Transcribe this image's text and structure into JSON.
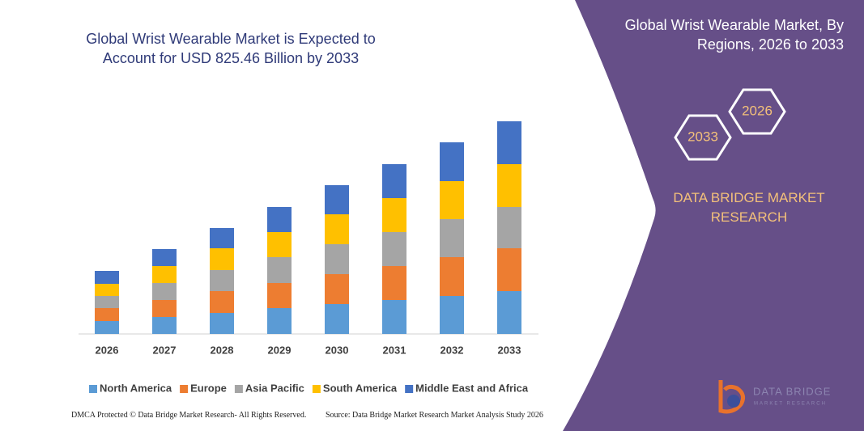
{
  "chart_data": {
    "type": "stacked_bar",
    "title": "Global Wrist Wearable Market is Expected to Account for USD 825.46 Billion by 2033",
    "categories": [
      "2026",
      "2027",
      "2028",
      "2029",
      "2030",
      "2031",
      "2032",
      "2033"
    ],
    "series": [
      {
        "name": "North America",
        "color": "#5b9bd5",
        "values": [
          16,
          21,
          26,
          32,
          37,
          42,
          47,
          53
        ]
      },
      {
        "name": "Europe",
        "color": "#ed7d31",
        "values": [
          16,
          21,
          27,
          31,
          37,
          42,
          48,
          53
        ]
      },
      {
        "name": "Asia Pacific",
        "color": "#a5a5a5",
        "values": [
          15,
          21,
          26,
          32,
          37,
          42,
          47,
          51
        ]
      },
      {
        "name": "South America",
        "color": "#ffc000",
        "values": [
          15,
          21,
          27,
          31,
          37,
          42,
          47,
          53
        ]
      },
      {
        "name": "Middle East and Africa",
        "color": "#4472c4",
        "values": [
          16,
          21,
          25,
          31,
          36,
          42,
          48,
          53
        ]
      }
    ]
  },
  "side": {
    "title": "Global Wrist Wearable Market, By Regions, 2026 to 2033",
    "hex_top": "2026",
    "hex_bottom": "2033",
    "brand": "DATA BRIDGE MARKET RESEARCH"
  },
  "logo": {
    "name": "DATA BRIDGE",
    "tagline": "MARKET RESEARCH"
  },
  "footer": {
    "left": "DMCA Protected © Data Bridge Market Research- All Rights Reserved.",
    "right": "Source: Data Bridge Market Research Market Analysis Study 2026"
  }
}
